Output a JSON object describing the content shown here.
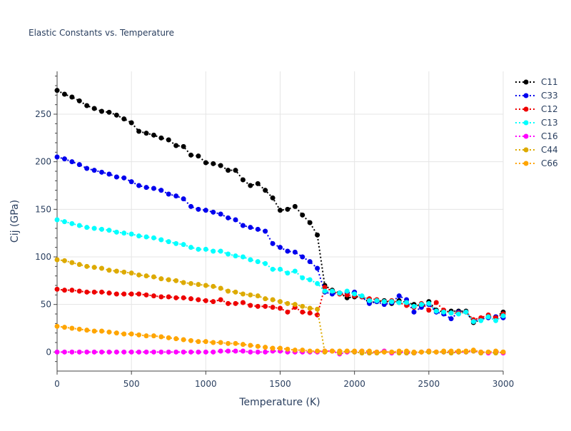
{
  "chart_data": {
    "type": "line",
    "title": "Elastic Constants vs. Temperature",
    "xlabel": "Temperature (K)",
    "ylabel": "Cij (GPa)",
    "xlim": [
      0,
      3000
    ],
    "ylim": [
      -20,
      295
    ],
    "xticks": [
      0,
      500,
      1000,
      1500,
      2000,
      2500,
      3000
    ],
    "yticks": [
      0,
      50,
      100,
      150,
      200,
      250
    ],
    "grid": true,
    "legend_position": "top-right",
    "x_step": 50,
    "series": [
      {
        "name": "C11",
        "color": "#000000",
        "values": [
          275,
          271,
          268,
          264,
          259,
          256,
          253,
          252,
          249,
          245,
          241,
          232,
          230,
          228,
          225,
          223,
          217,
          216,
          207,
          206,
          199,
          198,
          196,
          191,
          191,
          181,
          175,
          177,
          170,
          162,
          149,
          150,
          153,
          144,
          136,
          123,
          70,
          65,
          62,
          57,
          58,
          58,
          52,
          53,
          54,
          51,
          54,
          52,
          50,
          48,
          53,
          44,
          42,
          43,
          43,
          43,
          31,
          34,
          37,
          37,
          42
        ]
      },
      {
        "name": "C33",
        "color": "#0000ee",
        "values": [
          205,
          203,
          200,
          197,
          193,
          191,
          189,
          187,
          184,
          183,
          179,
          175,
          173,
          172,
          170,
          166,
          164,
          161,
          153,
          150,
          149,
          147,
          145,
          141,
          139,
          133,
          131,
          129,
          127,
          114,
          110,
          106,
          105,
          100,
          95,
          88,
          63,
          61,
          62,
          62,
          63,
          58,
          51,
          53,
          50,
          52,
          59,
          55,
          42,
          47,
          50,
          42,
          40,
          35,
          42,
          42,
          32,
          35,
          36,
          37,
          36
        ]
      },
      {
        "name": "C12",
        "color": "#ee0000",
        "values": [
          66,
          65,
          65,
          64,
          63,
          63,
          63,
          62,
          61,
          61,
          61,
          61,
          60,
          59,
          58,
          58,
          57,
          57,
          56,
          55,
          54,
          53,
          55,
          51,
          51,
          52,
          49,
          48,
          48,
          47,
          46,
          42,
          47,
          42,
          41,
          39,
          68,
          64,
          61,
          60,
          59,
          58,
          56,
          55,
          53,
          54,
          52,
          49,
          47,
          51,
          44,
          52,
          44,
          41,
          41,
          42,
          34,
          36,
          39,
          36,
          40
        ]
      },
      {
        "name": "C13",
        "color": "#00ffff",
        "values": [
          139,
          137,
          135,
          133,
          131,
          130,
          129,
          128,
          126,
          125,
          124,
          122,
          121,
          120,
          118,
          116,
          114,
          113,
          110,
          108,
          108,
          106,
          106,
          103,
          101,
          100,
          97,
          95,
          93,
          87,
          87,
          83,
          85,
          78,
          76,
          72,
          64,
          64,
          62,
          64,
          61,
          59,
          54,
          54,
          53,
          53,
          52,
          52,
          48,
          50,
          51,
          43,
          42,
          41,
          40,
          42,
          32,
          33,
          37,
          33,
          38
        ]
      },
      {
        "name": "C16",
        "color": "#ff00ff",
        "values": [
          0,
          0,
          0,
          0,
          0,
          0,
          0,
          0,
          0,
          0,
          0,
          0,
          0,
          0,
          0,
          0,
          0,
          0,
          0,
          0,
          0,
          0,
          1,
          1,
          1,
          1,
          0,
          0,
          0,
          1,
          1,
          0,
          0,
          0,
          0,
          0,
          1,
          1,
          -2,
          0,
          0,
          1,
          -1,
          0,
          1,
          -1,
          0,
          -1,
          -1,
          0,
          1,
          0,
          0,
          0,
          0,
          0,
          1,
          0,
          -1,
          0,
          -1
        ]
      },
      {
        "name": "C44",
        "color": "#ddaa00",
        "values": [
          97,
          96,
          94,
          92,
          90,
          89,
          88,
          86,
          85,
          84,
          83,
          81,
          80,
          79,
          77,
          76,
          75,
          73,
          72,
          71,
          70,
          69,
          67,
          64,
          63,
          61,
          60,
          59,
          56,
          55,
          53,
          51,
          50,
          48,
          46,
          45,
          0,
          1,
          -1,
          1,
          0,
          -1,
          -1,
          -1,
          0,
          0,
          -1,
          -1,
          -1,
          0,
          0,
          0,
          0,
          -1,
          0,
          0,
          1,
          -1,
          0,
          -1,
          0
        ]
      },
      {
        "name": "C66",
        "color": "#ffa500",
        "values": [
          27,
          26,
          25,
          24,
          23,
          22,
          22,
          21,
          20,
          19,
          19,
          18,
          17,
          17,
          16,
          15,
          14,
          13,
          12,
          11,
          11,
          10,
          10,
          9,
          9,
          8,
          7,
          6,
          5,
          4,
          4,
          3,
          2,
          2,
          1,
          1,
          1,
          1,
          1,
          1,
          1,
          1,
          1,
          0,
          0,
          0,
          1,
          1,
          0,
          0,
          1,
          0,
          1,
          1,
          1,
          1,
          2,
          0,
          0,
          1,
          0
        ]
      }
    ]
  }
}
